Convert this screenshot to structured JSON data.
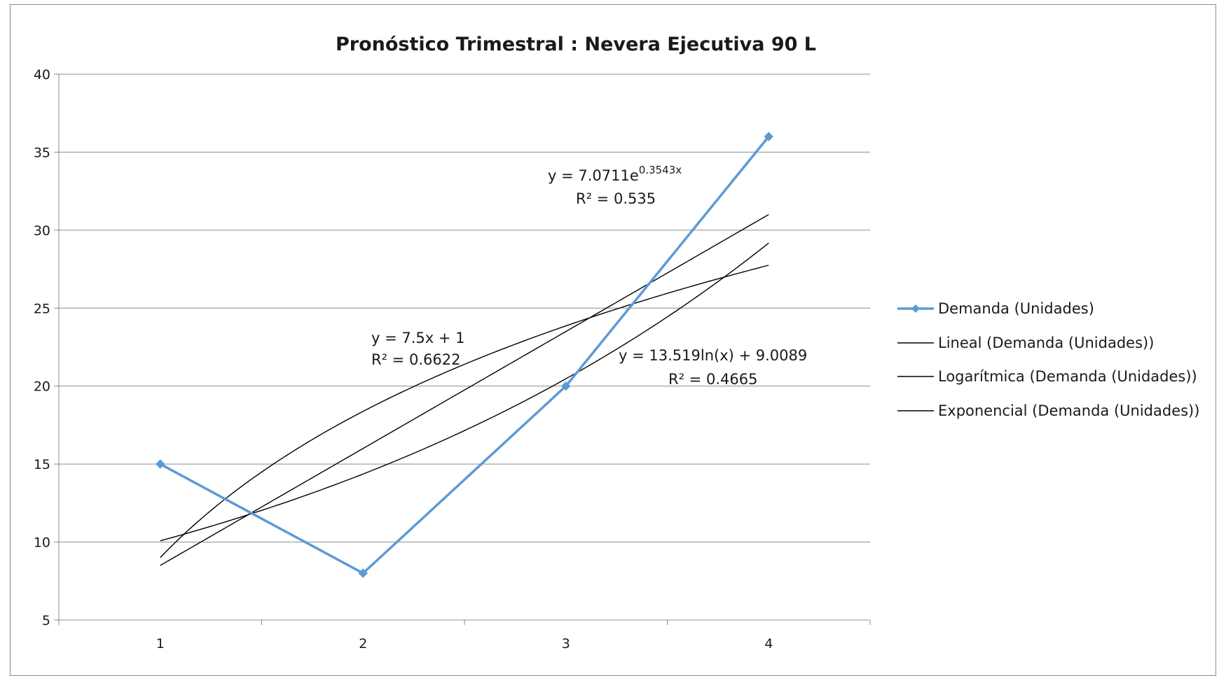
{
  "chart_data": {
    "type": "line",
    "title": "Pronóstico Trimestral :  Nevera Ejecutiva 90 L",
    "xlabel": "",
    "ylabel": "",
    "categories": [
      1,
      2,
      3,
      4
    ],
    "x_ticks": [
      "1",
      "2",
      "3",
      "4"
    ],
    "ylim": [
      5,
      40
    ],
    "y_ticks": [
      5,
      10,
      15,
      20,
      25,
      30,
      35,
      40
    ],
    "grid": "horizontal",
    "legend_position": "right",
    "series": [
      {
        "name": "Demanda (Unidades)",
        "values": [
          15,
          8,
          20,
          36
        ],
        "color": "#5b9bd5",
        "marker": "diamond"
      }
    ],
    "trendlines": [
      {
        "name": "Lineal (Demanda (Unidades))",
        "kind": "linear",
        "a": 7.5,
        "b": 1,
        "color": "#000000"
      },
      {
        "name": "Logarítmica (Demanda (Unidades))",
        "kind": "logarithmic",
        "a": 13.519,
        "b": 9.0089,
        "color": "#000000"
      },
      {
        "name": "Exponencial (Demanda (Unidades))",
        "kind": "exponential",
        "a": 7.0711,
        "b": 0.3543,
        "color": "#000000"
      }
    ],
    "annotations": {
      "linear_eq": "y = 7.5x + 1",
      "linear_r2": "R² = 0.6622",
      "log_eq": "y = 13.519ln(x) + 9.0089",
      "log_r2": "R² = 0.4665",
      "exp_eq_base": "y = 7.0711e",
      "exp_eq_exp": "0.3543x",
      "exp_r2": "R² = 0.535"
    }
  }
}
